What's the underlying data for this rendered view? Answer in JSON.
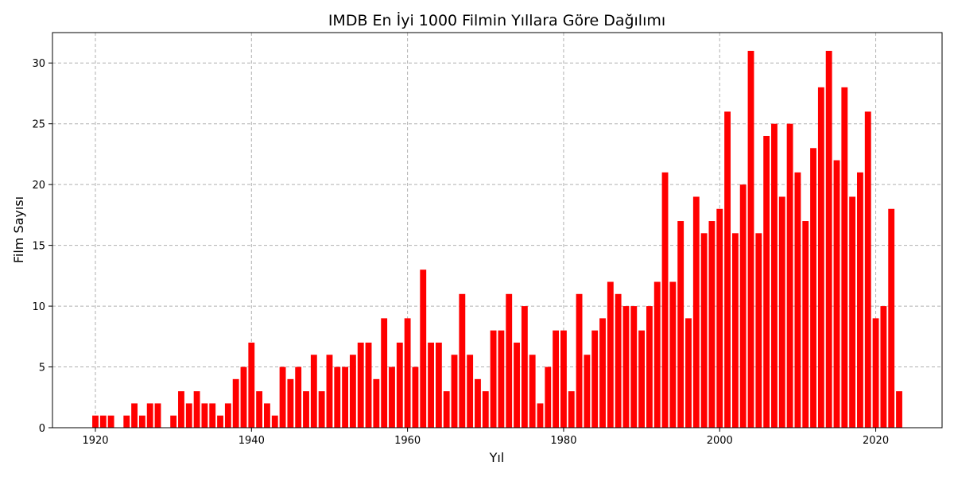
{
  "chart_data": {
    "type": "bar",
    "title": "IMDB En İyi 1000 Filmin Yıllara Göre Dağılımı",
    "xlabel": "Yıl",
    "ylabel": "Film Sayısı",
    "xlim": [
      1914.5,
      2028.5
    ],
    "ylim": [
      0,
      32.5
    ],
    "xticks": [
      1920,
      1940,
      1960,
      1980,
      2000,
      2020
    ],
    "yticks": [
      0,
      5,
      10,
      15,
      20,
      25,
      30
    ],
    "grid": true,
    "bar_color": "#ff0000",
    "x": [
      1920,
      1921,
      1922,
      1924,
      1925,
      1926,
      1927,
      1928,
      1930,
      1931,
      1932,
      1933,
      1934,
      1935,
      1936,
      1937,
      1938,
      1939,
      1940,
      1941,
      1942,
      1943,
      1944,
      1945,
      1946,
      1947,
      1948,
      1949,
      1950,
      1951,
      1952,
      1953,
      1954,
      1955,
      1956,
      1957,
      1958,
      1959,
      1960,
      1961,
      1962,
      1963,
      1964,
      1965,
      1966,
      1967,
      1968,
      1969,
      1970,
      1971,
      1972,
      1973,
      1974,
      1975,
      1976,
      1977,
      1978,
      1979,
      1980,
      1981,
      1982,
      1983,
      1984,
      1985,
      1986,
      1987,
      1988,
      1989,
      1990,
      1991,
      1992,
      1993,
      1994,
      1995,
      1996,
      1997,
      1998,
      1999,
      2000,
      2001,
      2002,
      2003,
      2004,
      2005,
      2006,
      2007,
      2008,
      2009,
      2010,
      2011,
      2012,
      2013,
      2014,
      2015,
      2016,
      2017,
      2018,
      2019,
      2020,
      2021,
      2022,
      2023
    ],
    "values": [
      1,
      1,
      1,
      1,
      2,
      1,
      2,
      2,
      1,
      3,
      2,
      3,
      2,
      2,
      1,
      2,
      4,
      5,
      7,
      3,
      2,
      1,
      5,
      4,
      5,
      3,
      6,
      3,
      6,
      5,
      5,
      6,
      7,
      7,
      4,
      9,
      5,
      7,
      9,
      5,
      13,
      7,
      7,
      3,
      6,
      11,
      6,
      4,
      3,
      8,
      8,
      11,
      7,
      10,
      6,
      2,
      5,
      8,
      8,
      3,
      11,
      6,
      8,
      9,
      12,
      11,
      10,
      10,
      8,
      10,
      12,
      21,
      12,
      17,
      9,
      19,
      16,
      17,
      18,
      26,
      16,
      20,
      31,
      16,
      24,
      25,
      19,
      25,
      21,
      17,
      23,
      28,
      31,
      22,
      28,
      19,
      21,
      26,
      9,
      10,
      18,
      3
    ]
  }
}
